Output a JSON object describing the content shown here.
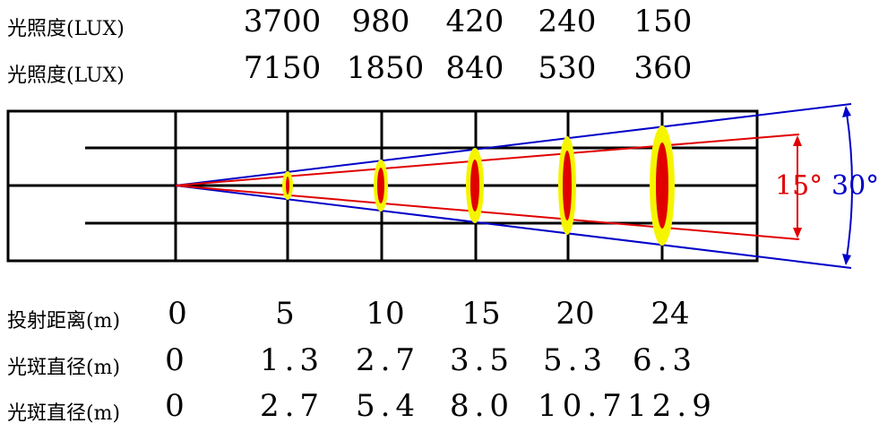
{
  "lux_rows": [
    {
      "label": "光照度(LUX)",
      "values": [
        "3700",
        "980",
        "420",
        "240",
        "150"
      ]
    },
    {
      "label": "光照度(LUX)",
      "values": [
        "7150",
        "1850",
        "840",
        "530",
        "360"
      ]
    }
  ],
  "distance_row": {
    "label": "投射距离(m)",
    "values": [
      "0",
      "5",
      "10",
      "15",
      "20",
      "24"
    ]
  },
  "spot_rows": [
    {
      "label": "光斑直径(m)",
      "values": [
        "0",
        "1.3",
        "2.7",
        "3.5",
        "5.3",
        "6.3"
      ]
    },
    {
      "label": "光斑直径(m)",
      "values": [
        "0",
        "2.7",
        "5.4",
        "8.0",
        "10.7",
        "12.9"
      ]
    }
  ],
  "angles": {
    "narrow": "15°",
    "wide": "30°"
  },
  "colors": {
    "narrow_beam": "#e00000",
    "wide_beam": "#0000c8",
    "spot_outer": "#f5f500",
    "spot_inner": "#e00000",
    "grid": "#000000"
  }
}
